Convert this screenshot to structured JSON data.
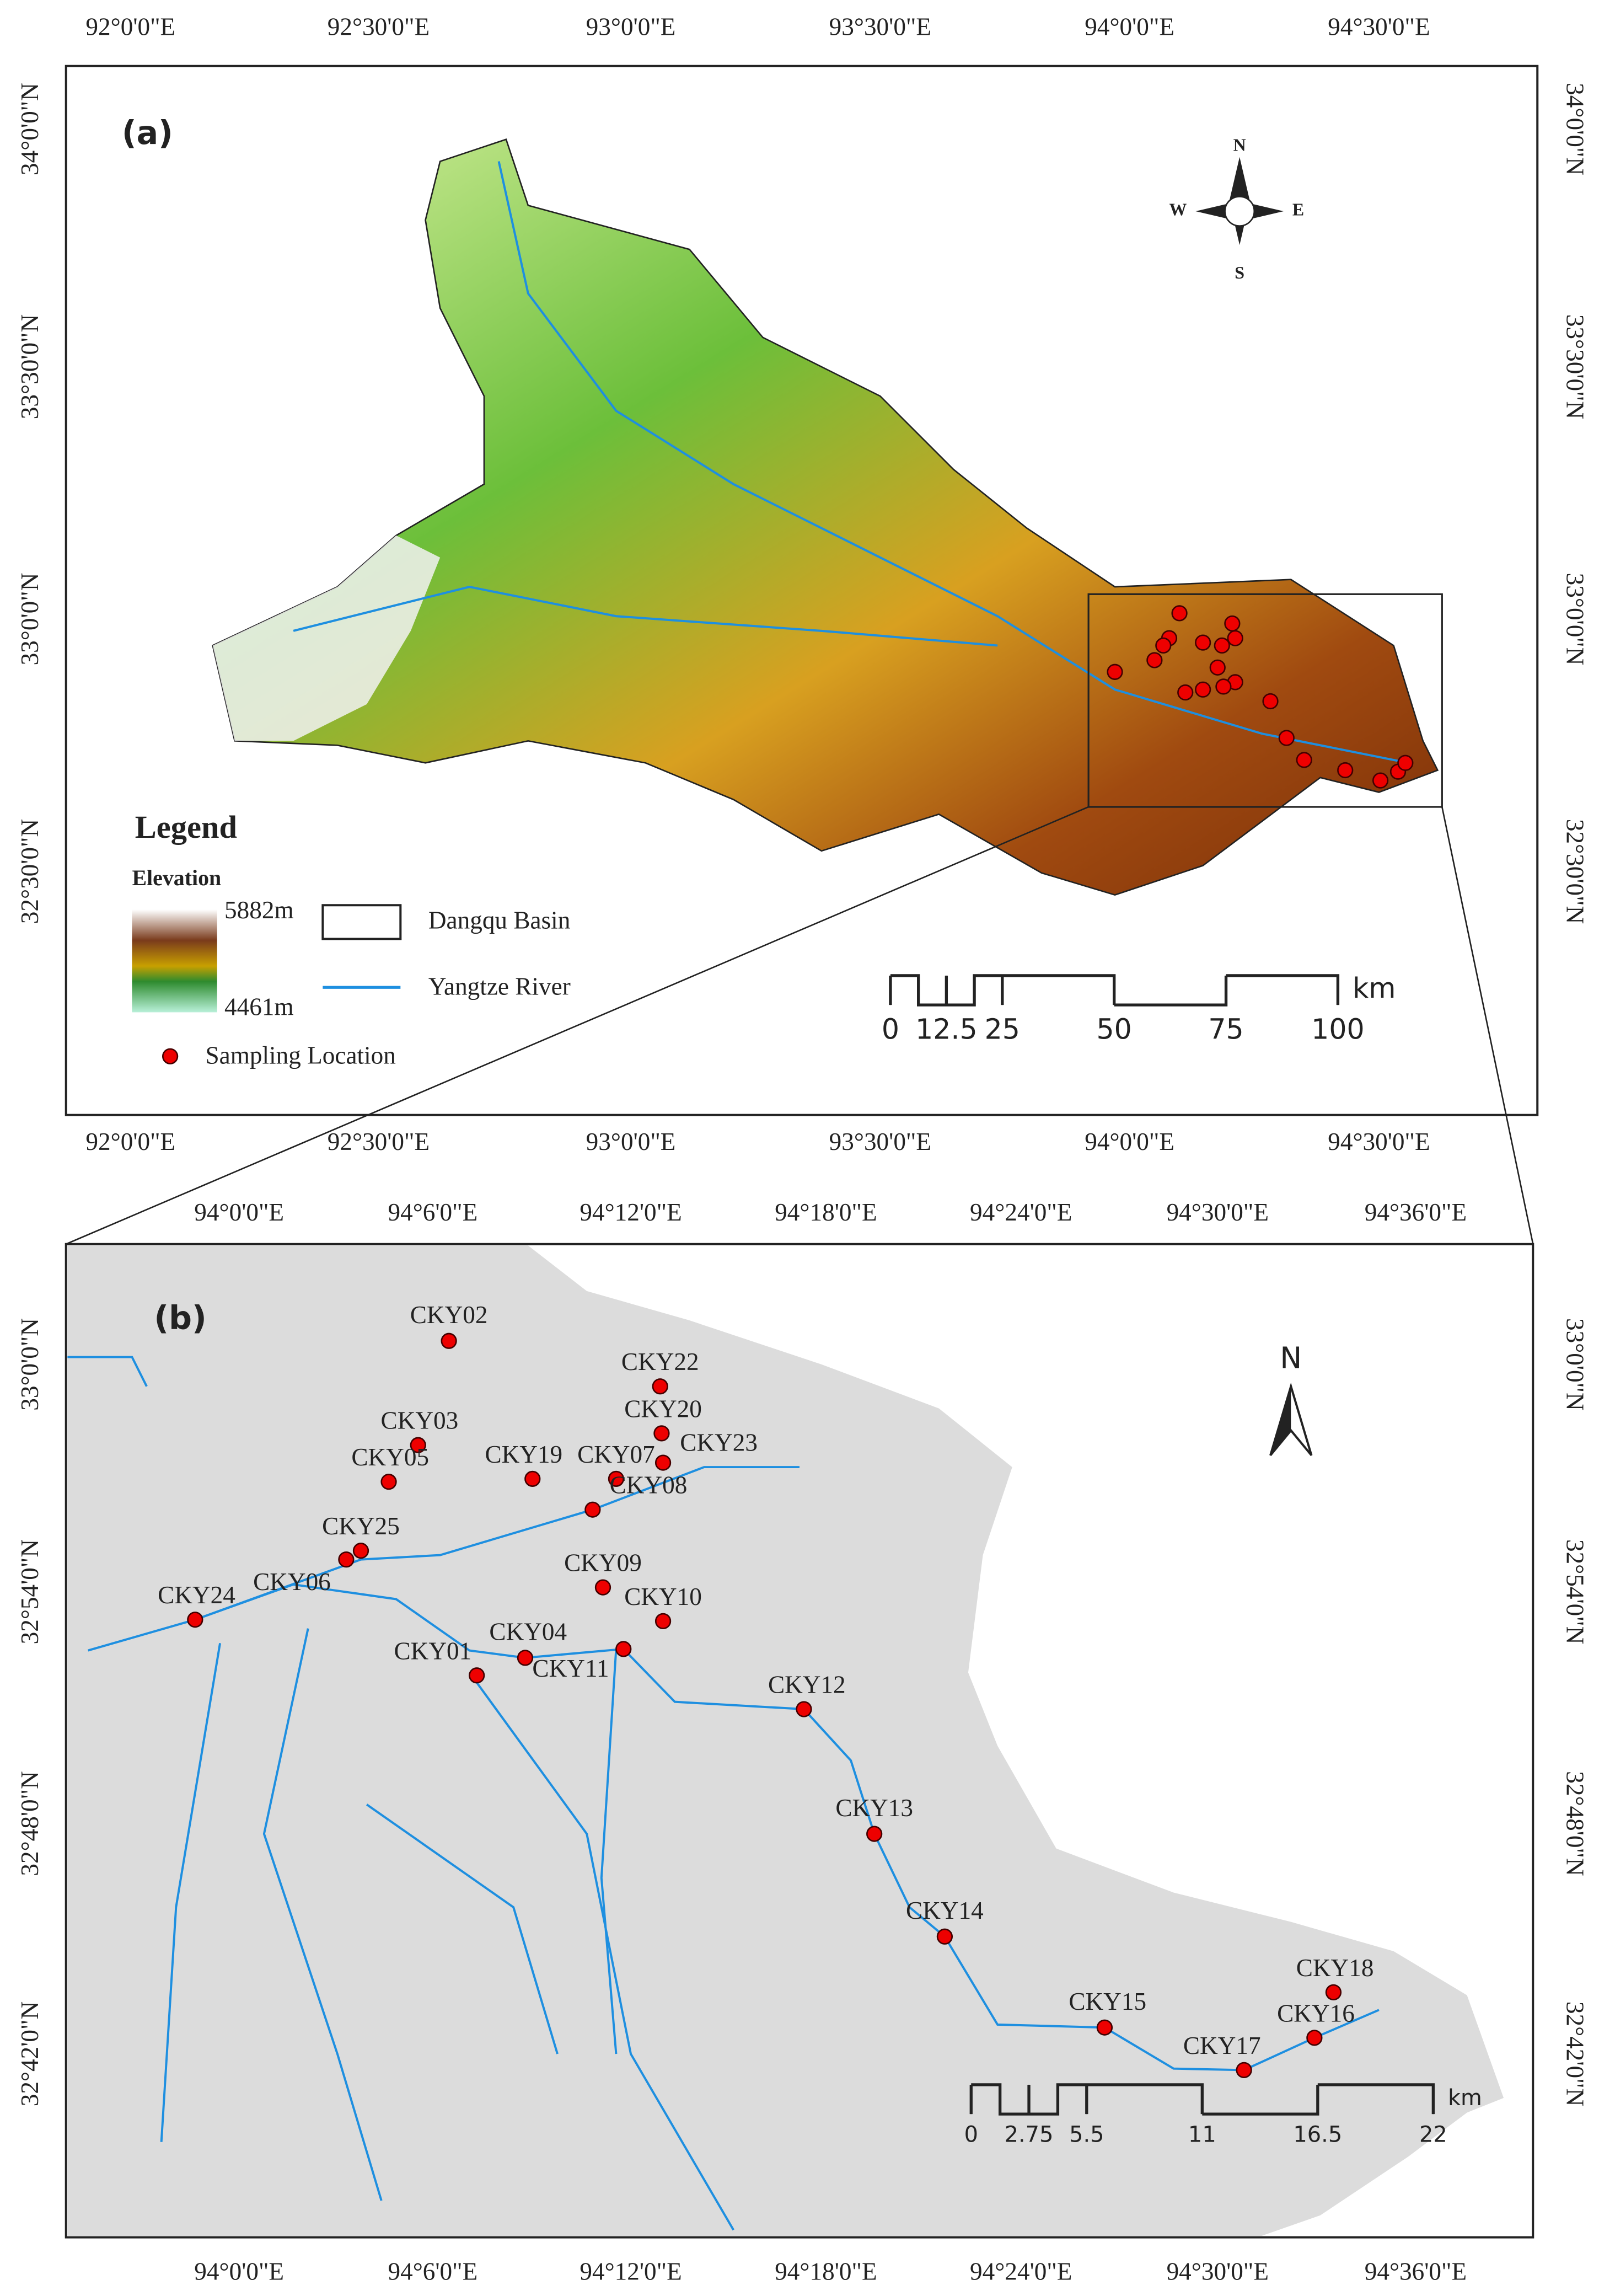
{
  "panel_a": {
    "label": "(a)",
    "lon_ticks": [
      "92°0'0\"E",
      "92°30'0\"E",
      "93°0'0\"E",
      "93°30'0\"E",
      "94°0'0\"E",
      "94°30'0\"E"
    ],
    "lat_ticks": [
      "34°0'0\"N",
      "33°30'0\"N",
      "33°0'0\"N",
      "32°30'0\"N"
    ],
    "compass": {
      "n": "N",
      "s": "S",
      "e": "E",
      "w": "W"
    },
    "legend": {
      "title": "Legend",
      "elevation_title": "Elevation",
      "elevation_max": "5882m",
      "elevation_min": "4461m",
      "basin": "Dangqu Basin",
      "river": "Yangtze River",
      "sampling": "Sampling Location"
    },
    "scale": {
      "ticks": [
        0,
        12.5,
        25,
        50,
        75,
        100
      ],
      "unit": "km"
    }
  },
  "panel_b": {
    "label": "(b)",
    "lon_ticks": [
      "94°0'0\"E",
      "94°6'0\"E",
      "94°12'0\"E",
      "94°18'0\"E",
      "94°24'0\"E",
      "94°30'0\"E",
      "94°36'0\"E"
    ],
    "lat_ticks": [
      "33°0'0\"N",
      "32°54'0\"N",
      "32°48'0\"N",
      "32°42'0\"N"
    ],
    "north": "N",
    "samples": [
      "CKY01",
      "CKY02",
      "CKY03",
      "CKY04",
      "CKY05",
      "CKY06",
      "CKY07",
      "CKY08",
      "CKY09",
      "CKY10",
      "CKY11",
      "CKY12",
      "CKY13",
      "CKY14",
      "CKY15",
      "CKY16",
      "CKY17",
      "CKY18",
      "CKY19",
      "CKY20",
      "CKY22",
      "CKY23",
      "CKY24",
      "CKY25"
    ],
    "scale": {
      "ticks": [
        0,
        2.75,
        5.5,
        11,
        16.5,
        22
      ],
      "unit": "km"
    }
  }
}
